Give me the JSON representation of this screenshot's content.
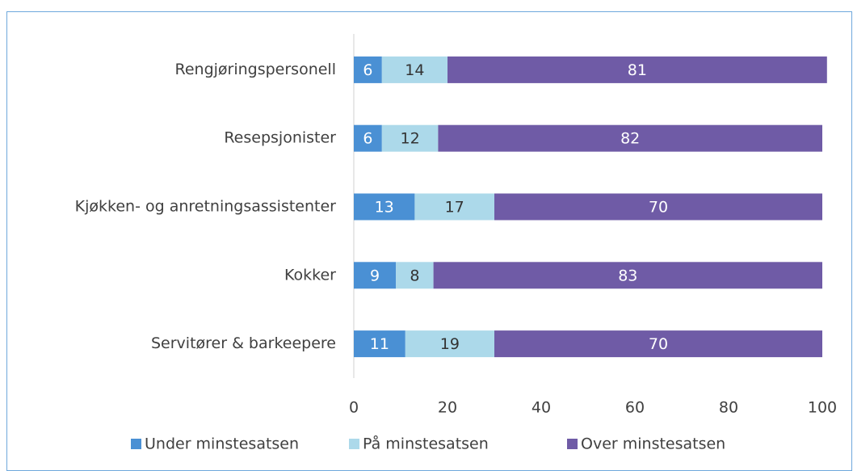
{
  "chart_data": {
    "type": "bar",
    "orientation": "horizontal",
    "stacked": true,
    "categories": [
      "Rengjøringspersonell",
      "Resepsjonister",
      "Kjøkken- og anretningsassistenter",
      "Kokker",
      "Servitører & barkeepere"
    ],
    "series": [
      {
        "name": "Under minstesatsen",
        "color": "#4a90d4",
        "label_color": "#ffffff",
        "values": [
          6,
          6,
          13,
          9,
          11
        ]
      },
      {
        "name": "På minstesatsen",
        "color": "#acd9ea",
        "label_color": "#333333",
        "values": [
          14,
          12,
          17,
          8,
          19
        ]
      },
      {
        "name": "Over minstesatsen",
        "color": "#6f5ba6",
        "label_color": "#ffffff",
        "values": [
          81,
          82,
          70,
          83,
          70
        ]
      }
    ],
    "xlim": [
      0,
      100
    ],
    "xticks": [
      0,
      20,
      40,
      60,
      80,
      100
    ],
    "grid": false,
    "legend": "bottom"
  }
}
